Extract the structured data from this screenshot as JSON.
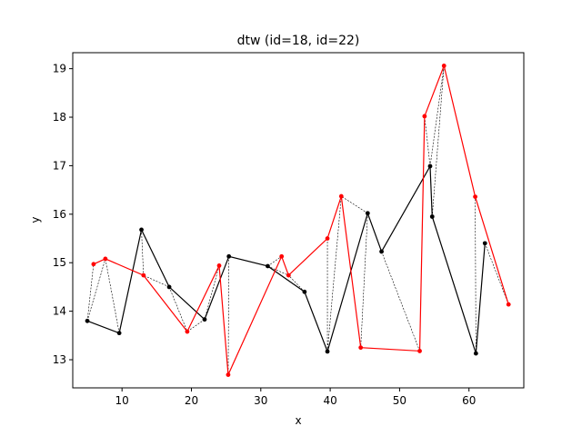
{
  "chart_data": {
    "type": "line",
    "title": "dtw (id=18, id=22)",
    "xlabel": "x",
    "ylabel": "y",
    "xlim": [
      2.9,
      67.9
    ],
    "ylim": [
      12.42,
      19.33
    ],
    "xticks": [
      10,
      20,
      30,
      40,
      50,
      60
    ],
    "yticks": [
      13,
      14,
      15,
      16,
      17,
      18,
      19
    ],
    "grid": false,
    "legend": "none",
    "series": [
      {
        "color": "#000000",
        "x": [
          5.0,
          9.6,
          12.8,
          16.8,
          21.9,
          25.4,
          31.0,
          36.3,
          39.6,
          45.4,
          47.4,
          54.4,
          54.7,
          61.0,
          62.3
        ],
        "y": [
          13.8,
          13.55,
          15.68,
          14.5,
          13.83,
          15.13,
          14.93,
          14.4,
          13.17,
          16.02,
          15.23,
          16.99,
          15.95,
          13.13,
          15.4
        ]
      },
      {
        "color": "#ff0000",
        "x": [
          5.9,
          7.6,
          13.1,
          19.4,
          24.0,
          25.3,
          33.0,
          34.0,
          39.6,
          41.6,
          44.4,
          52.9,
          53.6,
          56.4,
          60.9,
          65.7
        ],
        "y": [
          14.97,
          15.08,
          14.74,
          13.58,
          14.94,
          12.69,
          15.13,
          14.74,
          15.5,
          16.37,
          13.25,
          13.18,
          18.02,
          19.06,
          16.36,
          14.14
        ]
      }
    ],
    "alignment": [
      [
        0,
        0
      ],
      [
        0,
        1
      ],
      [
        1,
        1
      ],
      [
        2,
        2
      ],
      [
        3,
        2
      ],
      [
        3,
        3
      ],
      [
        4,
        3
      ],
      [
        4,
        4
      ],
      [
        5,
        5
      ],
      [
        6,
        6
      ],
      [
        6,
        7
      ],
      [
        7,
        7
      ],
      [
        8,
        8
      ],
      [
        8,
        9
      ],
      [
        9,
        9
      ],
      [
        9,
        10
      ],
      [
        10,
        11
      ],
      [
        11,
        12
      ],
      [
        11,
        13
      ],
      [
        12,
        13
      ],
      [
        13,
        14
      ],
      [
        14,
        15
      ]
    ]
  }
}
